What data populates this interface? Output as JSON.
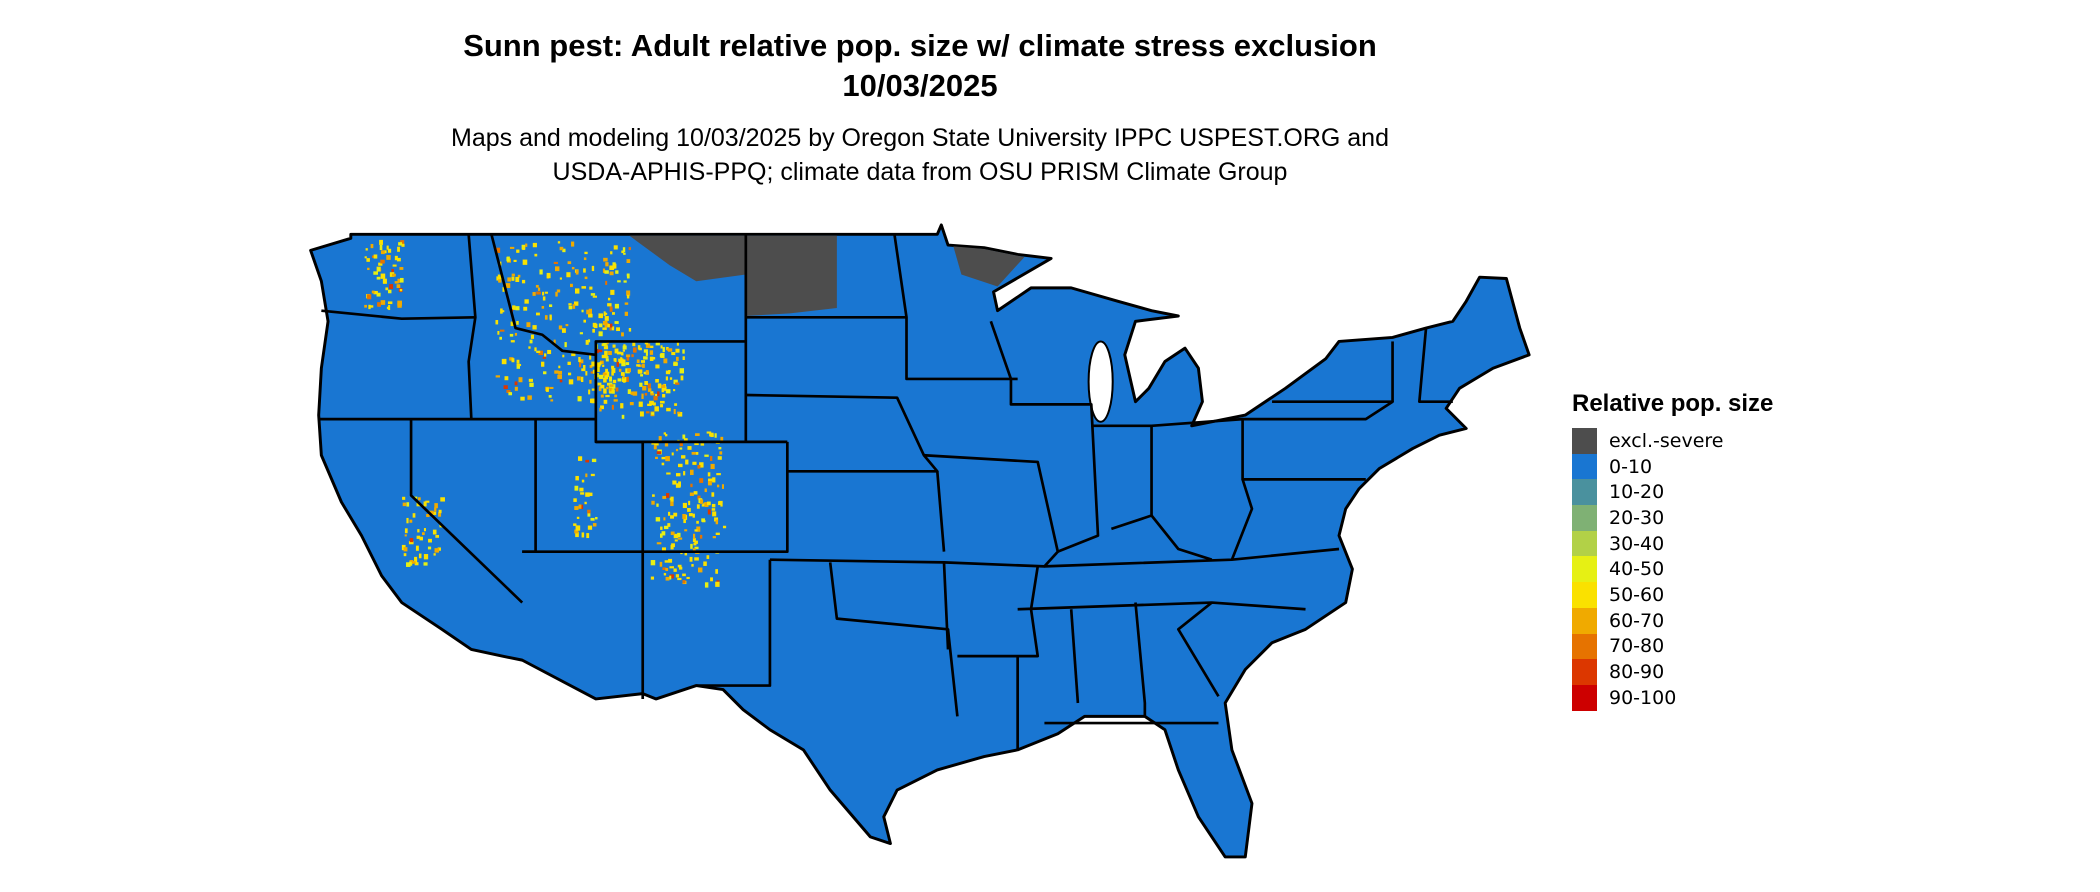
{
  "header": {
    "title": "Sunn pest: Adult relative pop. size w/ climate stress exclusion",
    "date": "10/03/2025",
    "subtitle_line1": "Maps and modeling 10/03/2025 by Oregon State University IPPC USPEST.ORG and",
    "subtitle_line2": "USDA-APHIS-PPQ; climate data from OSU PRISM Climate Group"
  },
  "map": {
    "region": "Contiguous United States",
    "base_color": "#1976d2",
    "border_color": "#000000",
    "excluded_color": "#4d4d4d"
  },
  "legend": {
    "title": "Relative pop. size",
    "items": [
      {
        "label": "excl.-severe",
        "color": "#4d4d4d"
      },
      {
        "label": "0-10",
        "color": "#1976d2"
      },
      {
        "label": "10-20",
        "color": "#4a919e"
      },
      {
        "label": "20-30",
        "color": "#7fb174"
      },
      {
        "label": "30-40",
        "color": "#b2d147"
      },
      {
        "label": "40-50",
        "color": "#e6f014"
      },
      {
        "label": "50-60",
        "color": "#fae100"
      },
      {
        "label": "60-70",
        "color": "#f0aa00"
      },
      {
        "label": "70-80",
        "color": "#e67300"
      },
      {
        "label": "80-90",
        "color": "#dc3700"
      },
      {
        "label": "90-100",
        "color": "#cd0000"
      }
    ]
  }
}
